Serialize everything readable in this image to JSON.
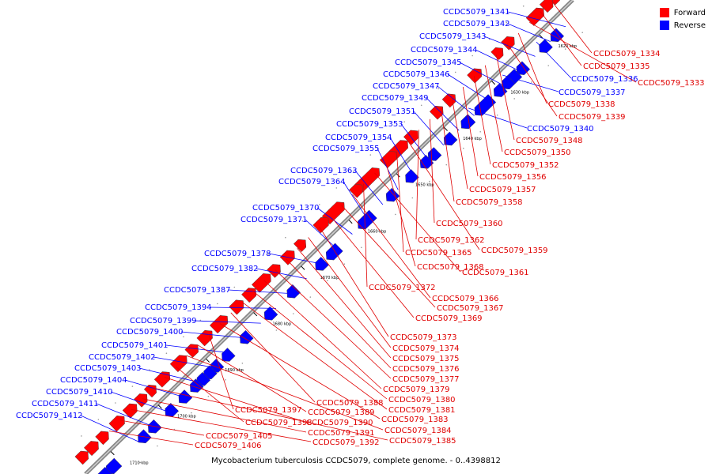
{
  "colors": {
    "forward": "#ff0000",
    "reverse": "#0000ff",
    "backbone": "#888888"
  },
  "legend": {
    "forward": "Forward",
    "reverse": "Reverse"
  },
  "caption": "Mycobacterium tuberculosis CCDC5079, complete genome. - 0..4398812",
  "scale_labels": [
    "1620 kbp",
    "1630 kbp",
    "1640 kbp",
    "1650 kbp",
    "1660 kbp",
    "1670 kbp",
    "1680 kbp",
    "1690 kbp",
    "1700 kbp",
    "1710 kbp"
  ],
  "reverse_labels": [
    "CCDC5079_1341",
    "CCDC5079_1342",
    "CCDC5079_1343",
    "CCDC5079_1344",
    "CCDC5079_1345",
    "CCDC5079_1346",
    "CCDC5079_1347",
    "CCDC5079_1349",
    "CCDC5079_1351",
    "CCDC5079_1353",
    "CCDC5079_1354",
    "CCDC5079_1355",
    "CCDC5079_1363",
    "CCDC5079_1364",
    "CCDC5079_1370",
    "CCDC5079_1371",
    "CCDC5079_1378",
    "CCDC5079_1382",
    "CCDC5079_1387",
    "CCDC5079_1394",
    "CCDC5079_1399",
    "CCDC5079_1400",
    "CCDC5079_1401",
    "CCDC5079_1402",
    "CCDC5079_1403",
    "CCDC5079_1404",
    "CCDC5079_1410",
    "CCDC5079_1411",
    "CCDC5079_1412"
  ],
  "reverse_labels_right": [
    "CCDC5079_1336",
    "CCDC5079_1337",
    "CCDC5079_1340"
  ],
  "forward_labels": [
    "CCDC5079_1334",
    "CCDC5079_1335",
    "CCDC5079_1333",
    "CCDC5079_1338",
    "CCDC5079_1339",
    "CCDC5079_1348",
    "CCDC5079_1350",
    "CCDC5079_1352",
    "CCDC5079_1356",
    "CCDC5079_1357",
    "CCDC5079_1358",
    "CCDC5079_1360",
    "CCDC5079_1362",
    "CCDC5079_1359",
    "CCDC5079_1365",
    "CCDC5079_1368",
    "CCDC5079_1361",
    "CCDC5079_1372",
    "CCDC5079_1366",
    "CCDC5079_1367",
    "CCDC5079_1369",
    "CCDC5079_1373",
    "CCDC5079_1374",
    "CCDC5079_1375",
    "CCDC5079_1376",
    "CCDC5079_1377",
    "CCDC5079_1379",
    "CCDC5079_1380",
    "CCDC5079_1381",
    "CCDC5079_1388",
    "CCDC5079_1383",
    "CCDC5079_1397",
    "CCDC5079_1389",
    "CCDC5079_1384",
    "CCDC5079_1398",
    "CCDC5079_1390",
    "CCDC5079_1385",
    "CCDC5079_1391",
    "CCDC5079_1392",
    "CCDC5079_1405",
    "CCDC5079_1406"
  ]
}
